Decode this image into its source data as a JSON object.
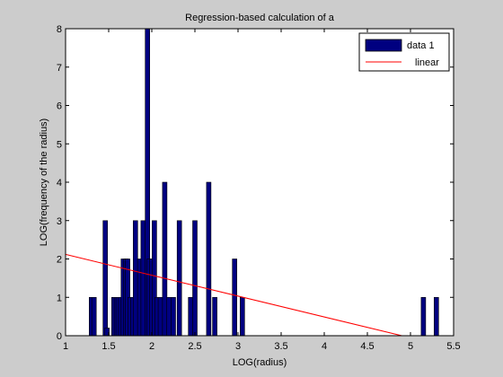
{
  "chart_data": {
    "type": "bar",
    "title": "Regression-based calculation of a",
    "xlabel": "LOG(radius)",
    "ylabel": "LOG(frequency of the radius)",
    "xlim": [
      1,
      5.5
    ],
    "ylim": [
      0,
      8
    ],
    "xticks": [
      "1",
      "1.5",
      "2",
      "2.5",
      "3",
      "3.5",
      "4",
      "4.5",
      "5",
      "5.5"
    ],
    "yticks": [
      "0",
      "1",
      "2",
      "3",
      "4",
      "5",
      "6",
      "7",
      "8"
    ],
    "grid": false,
    "legend_position": "top-right",
    "bar_color": "#000080",
    "line_color": "#ff0000",
    "series": [
      {
        "name": "data 1",
        "kind": "bar",
        "x": [
          1.3,
          1.33,
          1.46,
          1.48,
          1.56,
          1.59,
          1.61,
          1.64,
          1.67,
          1.7,
          1.72,
          1.75,
          1.78,
          1.81,
          1.86,
          1.9,
          1.95,
          1.97,
          2.0,
          2.03,
          2.06,
          2.1,
          2.15,
          2.2,
          2.25,
          2.32,
          2.45,
          2.5,
          2.66,
          2.73,
          2.96,
          3.05,
          5.15,
          5.3
        ],
        "values": [
          1,
          1,
          3,
          0.2,
          1,
          1,
          1,
          1,
          2,
          2,
          2,
          1,
          1,
          3,
          2,
          3,
          8,
          2,
          2,
          3,
          1,
          1,
          4,
          1,
          1,
          3,
          1,
          3,
          4,
          1,
          2,
          1,
          1,
          1
        ]
      },
      {
        "name": "linear",
        "kind": "line",
        "x": [
          1.0,
          4.9
        ],
        "values": [
          2.12,
          0
        ]
      }
    ]
  }
}
